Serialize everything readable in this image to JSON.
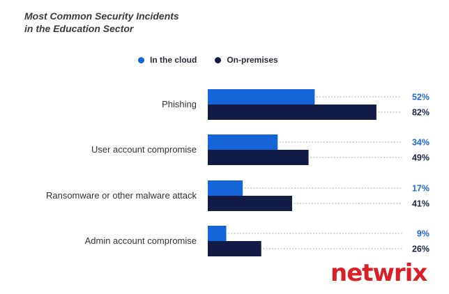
{
  "title_lines": [
    "Most Common Security Incidents",
    "in the Education Sector"
  ],
  "logo_text": "netwrix",
  "colors": {
    "cloud": "#1565d8",
    "onprem": "#111b45",
    "cloud_label": "#1f67d6",
    "onprem_label": "#1b2347",
    "category_text": "#333333",
    "dots": "#bbbbbb",
    "logo": "#d92027"
  },
  "chart_data": {
    "type": "bar",
    "orientation": "horizontal",
    "title": "Most Common Security Incidents in the Education Sector",
    "categories": [
      "Phishing",
      "User account compromise",
      "Ransomware or other malware attack",
      "Admin account compromise"
    ],
    "series": [
      {
        "name": "In the cloud",
        "values": [
          52,
          34,
          17,
          9
        ]
      },
      {
        "name": "On-premises",
        "values": [
          82,
          49,
          41,
          26
        ]
      }
    ],
    "value_suffix": "%",
    "xlim": [
      0,
      100
    ],
    "legend_position": "top",
    "grid": false
  }
}
